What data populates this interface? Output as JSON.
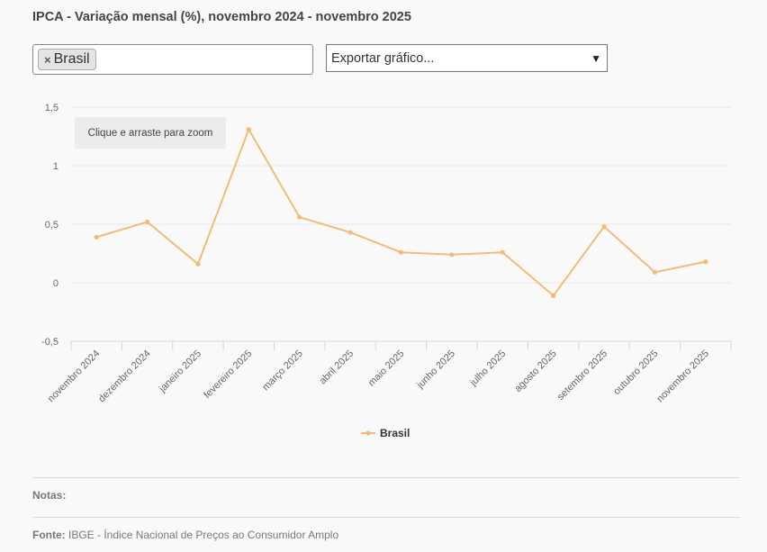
{
  "header": {
    "title": "IPCA - Variação mensal (%), novembro 2024 - novembro 2025"
  },
  "filter": {
    "tag_label": "Brasil",
    "remove_glyph": "×"
  },
  "export": {
    "label": "Exportar gráfico...",
    "arrow": "⌄"
  },
  "zoom_hint": "Clique e arraste para zoom",
  "chart_data": {
    "type": "line",
    "title": "IPCA - Variação mensal (%), novembro 2024 - novembro 2025",
    "categories": [
      "novembro 2024",
      "dezembro 2024",
      "janeiro 2025",
      "fevereiro 2025",
      "março 2025",
      "abril 2025",
      "maio 2025",
      "junho 2025",
      "julho 2025",
      "agosto 2025",
      "setembro 2025",
      "outubro 2025",
      "novembro 2025"
    ],
    "series": [
      {
        "name": "Brasil",
        "values": [
          0.39,
          0.52,
          0.16,
          1.31,
          0.56,
          0.43,
          0.26,
          0.24,
          0.26,
          -0.11,
          0.48,
          0.09,
          0.18
        ],
        "color": "#f2bc78"
      }
    ],
    "ylim": [
      -0.5,
      1.5
    ],
    "yticks": [
      -0.5,
      0,
      0.5,
      1,
      1.5
    ],
    "ytick_labels": [
      "-0,5",
      "0",
      "0,5",
      "1",
      "1,5"
    ],
    "grid": true,
    "legend": "bottom-center"
  },
  "footer": {
    "notes_label": "Notas:",
    "source_label": "Fonte:",
    "source_text": "IBGE - Índice Nacional de Preços ao Consumidor Amplo"
  },
  "colors": {
    "gridline": "#e6e6e6",
    "axis": "#ccd6eb",
    "series": "#f2bc78"
  }
}
